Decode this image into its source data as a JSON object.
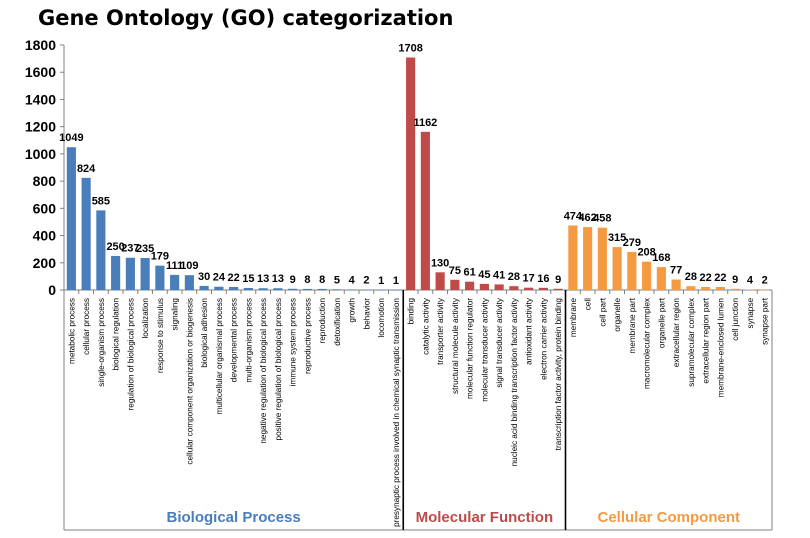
{
  "chart_data": {
    "type": "bar",
    "title": "Gene Ontology (GO) categorization",
    "xlabel": "",
    "ylabel": "",
    "ylim": [
      0,
      1800
    ],
    "yticks": [
      0,
      200,
      400,
      600,
      800,
      1000,
      1200,
      1400,
      1600,
      1800
    ],
    "grid": false,
    "groups": [
      {
        "name": "Biological Process",
        "color": "#4a7ebb",
        "categories": [
          "metabolic process",
          "cellular process",
          "single-organism process",
          "biological regulation",
          "regulation of biological process",
          "localization",
          "response to stimulus",
          "signaling",
          "cellular component organization or biogenesis",
          "biological adhesion",
          "multicellular organismal process",
          "developmental process",
          "multi-organism process",
          "negative regulation of biological process",
          "positive regulation of biological process",
          "immune system process",
          "reproductive process",
          "reproduction",
          "detoxification",
          "growth",
          "behavior",
          "locomotion",
          "presynaptic process involved in chemical synaptic transmission"
        ],
        "values": [
          1049,
          824,
          585,
          250,
          237,
          235,
          179,
          111,
          109,
          30,
          24,
          22,
          15,
          13,
          13,
          9,
          8,
          8,
          5,
          4,
          2,
          1,
          1
        ]
      },
      {
        "name": "Molecular Function",
        "color": "#be4b48",
        "categories": [
          "binding",
          "catalytic activity",
          "transporter activity",
          "structural molecule activity",
          "molecular function regulator",
          "molecular transducer activity",
          "signal transducer activity",
          "nucleic acid binding transcription factor activity",
          "antioxidant activity",
          "electron carrier activity",
          "transcription factor activity, protein binding"
        ],
        "values": [
          1708,
          1162,
          130,
          75,
          61,
          45,
          41,
          28,
          17,
          16,
          9
        ]
      },
      {
        "name": "Cellular Component",
        "color": "#f59a42",
        "categories": [
          "membrane",
          "cell",
          "cell part",
          "organelle",
          "membrane part",
          "macromolecular complex",
          "organelle part",
          "extracellular region",
          "supramolecular complex",
          "extracellular region part",
          "membrane-enclosed lumen",
          "cell junction",
          "synapse",
          "synapse part"
        ],
        "values": [
          474,
          462,
          458,
          315,
          279,
          208,
          168,
          77,
          28,
          22,
          22,
          9,
          4,
          2
        ]
      }
    ]
  }
}
